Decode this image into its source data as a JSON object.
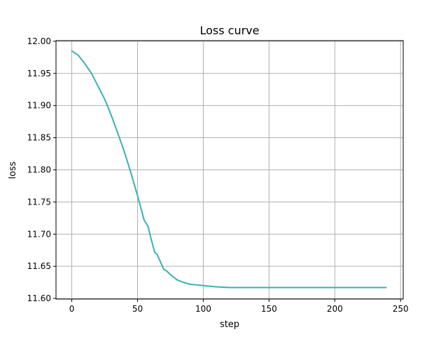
{
  "chart_data": {
    "type": "line",
    "title": "Loss curve",
    "xlabel": "step",
    "ylabel": "loss",
    "xlim": [
      -12,
      252
    ],
    "ylim": [
      11.599,
      12.001
    ],
    "xticks": [
      0,
      50,
      100,
      150,
      200,
      250
    ],
    "xtick_labels": [
      "0",
      "50",
      "100",
      "150",
      "200",
      "250"
    ],
    "yticks": [
      11.6,
      11.65,
      11.7,
      11.75,
      11.8,
      11.85,
      11.9,
      11.95,
      12.0
    ],
    "ytick_labels": [
      "11.60",
      "11.65",
      "11.70",
      "11.75",
      "11.80",
      "11.85",
      "11.90",
      "11.95",
      "12.00"
    ],
    "grid": true,
    "line_color": "#3ab0b0",
    "series": [
      {
        "x": [
          0,
          5,
          10,
          15,
          20,
          25,
          30,
          35,
          40,
          45,
          50,
          55,
          58,
          60,
          63,
          65,
          70,
          72,
          75,
          80,
          85,
          90,
          95,
          100,
          110,
          120,
          130,
          150,
          200,
          239
        ],
        "values": [
          11.985,
          11.978,
          11.965,
          11.95,
          11.93,
          11.91,
          11.885,
          11.857,
          11.828,
          11.795,
          11.76,
          11.722,
          11.712,
          11.695,
          11.672,
          11.668,
          11.645,
          11.643,
          11.637,
          11.629,
          11.625,
          11.622,
          11.621,
          11.62,
          11.618,
          11.617,
          11.617,
          11.617,
          11.617,
          11.617
        ]
      }
    ]
  }
}
